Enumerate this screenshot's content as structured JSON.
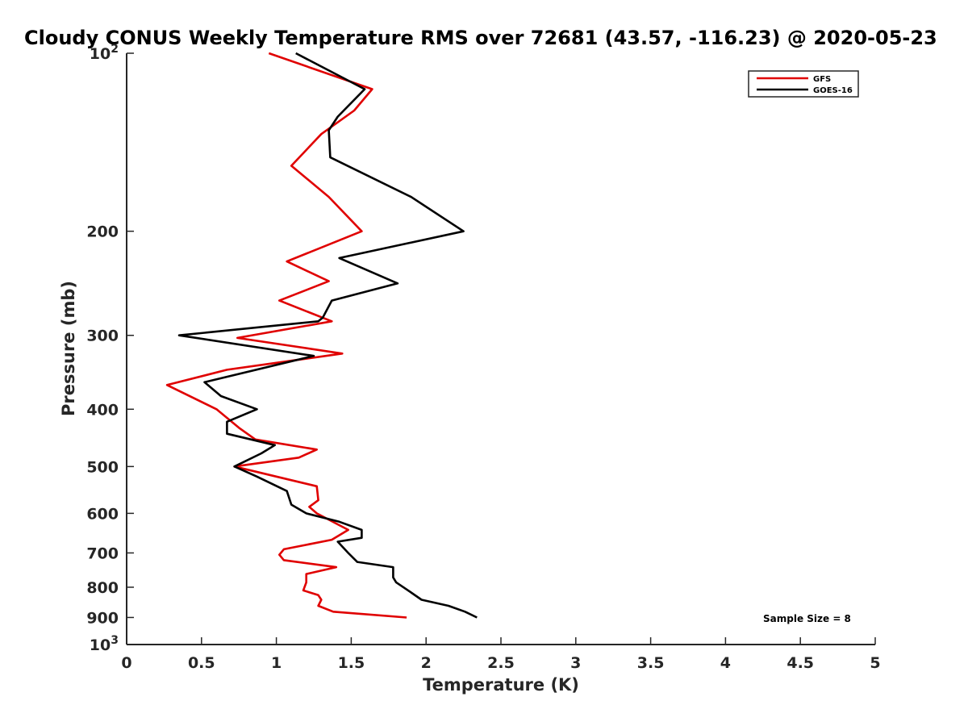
{
  "chart_data": {
    "type": "line",
    "title": "Cloudy CONUS Weekly Temperature RMS over 72681 (43.57, -116.23) @ 2020-05-23",
    "xlabel": "Temperature (K)",
    "ylabel": "Pressure (mb)",
    "xlim": [
      0,
      5
    ],
    "ylim": [
      100,
      1000
    ],
    "yscale": "log",
    "y_reversed": true,
    "x_ticks": [
      "0",
      "0.5",
      "1",
      "1.5",
      "2",
      "2.5",
      "3",
      "3.5",
      "4",
      "4.5",
      "5"
    ],
    "y_ticks": [
      {
        "value": 100,
        "base": "10",
        "exp": "2"
      },
      {
        "value": 200,
        "label": "200"
      },
      {
        "value": 300,
        "label": "300"
      },
      {
        "value": 400,
        "label": "400"
      },
      {
        "value": 500,
        "label": "500"
      },
      {
        "value": 600,
        "label": "600"
      },
      {
        "value": 700,
        "label": "700"
      },
      {
        "value": 800,
        "label": "800"
      },
      {
        "value": 900,
        "label": "900"
      },
      {
        "value": 1000,
        "base": "10",
        "exp": "3"
      }
    ],
    "grid": false,
    "legend_position": "top-right",
    "annotation": "Sample Size = 8",
    "series": [
      {
        "name": "GFS",
        "color": "#e00000",
        "points": [
          {
            "x": 0.95,
            "y": 100
          },
          {
            "x": 1.64,
            "y": 115
          },
          {
            "x": 1.52,
            "y": 125
          },
          {
            "x": 1.3,
            "y": 137
          },
          {
            "x": 1.1,
            "y": 155
          },
          {
            "x": 1.35,
            "y": 175
          },
          {
            "x": 1.57,
            "y": 200
          },
          {
            "x": 1.07,
            "y": 225
          },
          {
            "x": 1.35,
            "y": 243
          },
          {
            "x": 1.02,
            "y": 262
          },
          {
            "x": 1.37,
            "y": 284
          },
          {
            "x": 0.74,
            "y": 303
          },
          {
            "x": 1.44,
            "y": 322
          },
          {
            "x": 0.67,
            "y": 343
          },
          {
            "x": 0.27,
            "y": 364
          },
          {
            "x": 0.6,
            "y": 400
          },
          {
            "x": 0.75,
            "y": 430
          },
          {
            "x": 0.86,
            "y": 450
          },
          {
            "x": 1.27,
            "y": 468
          },
          {
            "x": 1.15,
            "y": 483
          },
          {
            "x": 0.72,
            "y": 500
          },
          {
            "x": 1.0,
            "y": 520
          },
          {
            "x": 1.27,
            "y": 540
          },
          {
            "x": 1.28,
            "y": 570
          },
          {
            "x": 1.22,
            "y": 585
          },
          {
            "x": 1.27,
            "y": 600
          },
          {
            "x": 1.48,
            "y": 640
          },
          {
            "x": 1.37,
            "y": 665
          },
          {
            "x": 1.05,
            "y": 690
          },
          {
            "x": 1.02,
            "y": 705
          },
          {
            "x": 1.05,
            "y": 720
          },
          {
            "x": 1.4,
            "y": 740
          },
          {
            "x": 1.2,
            "y": 760
          },
          {
            "x": 1.2,
            "y": 785
          },
          {
            "x": 1.18,
            "y": 810
          },
          {
            "x": 1.28,
            "y": 825
          },
          {
            "x": 1.3,
            "y": 840
          },
          {
            "x": 1.28,
            "y": 860
          },
          {
            "x": 1.38,
            "y": 880
          },
          {
            "x": 1.87,
            "y": 900
          }
        ]
      },
      {
        "name": "GOES-16",
        "color": "#000000",
        "points": [
          {
            "x": 1.13,
            "y": 100
          },
          {
            "x": 1.59,
            "y": 115
          },
          {
            "x": 1.41,
            "y": 128
          },
          {
            "x": 1.35,
            "y": 135
          },
          {
            "x": 1.36,
            "y": 150
          },
          {
            "x": 1.9,
            "y": 175
          },
          {
            "x": 2.25,
            "y": 200
          },
          {
            "x": 1.42,
            "y": 222
          },
          {
            "x": 1.81,
            "y": 245
          },
          {
            "x": 1.37,
            "y": 262
          },
          {
            "x": 1.31,
            "y": 280
          },
          {
            "x": 1.28,
            "y": 284
          },
          {
            "x": 0.35,
            "y": 300
          },
          {
            "x": 1.25,
            "y": 325
          },
          {
            "x": 0.52,
            "y": 360
          },
          {
            "x": 0.63,
            "y": 380
          },
          {
            "x": 0.87,
            "y": 400
          },
          {
            "x": 0.67,
            "y": 420
          },
          {
            "x": 0.67,
            "y": 440
          },
          {
            "x": 0.99,
            "y": 460
          },
          {
            "x": 0.9,
            "y": 475
          },
          {
            "x": 0.72,
            "y": 500
          },
          {
            "x": 0.87,
            "y": 520
          },
          {
            "x": 1.07,
            "y": 550
          },
          {
            "x": 1.1,
            "y": 580
          },
          {
            "x": 1.2,
            "y": 600
          },
          {
            "x": 1.42,
            "y": 620
          },
          {
            "x": 1.57,
            "y": 640
          },
          {
            "x": 1.57,
            "y": 660
          },
          {
            "x": 1.41,
            "y": 670
          },
          {
            "x": 1.48,
            "y": 700
          },
          {
            "x": 1.54,
            "y": 725
          },
          {
            "x": 1.78,
            "y": 740
          },
          {
            "x": 1.78,
            "y": 770
          },
          {
            "x": 1.8,
            "y": 785
          },
          {
            "x": 1.88,
            "y": 810
          },
          {
            "x": 1.97,
            "y": 840
          },
          {
            "x": 2.15,
            "y": 860
          },
          {
            "x": 2.26,
            "y": 880
          },
          {
            "x": 2.34,
            "y": 900
          }
        ]
      }
    ]
  }
}
